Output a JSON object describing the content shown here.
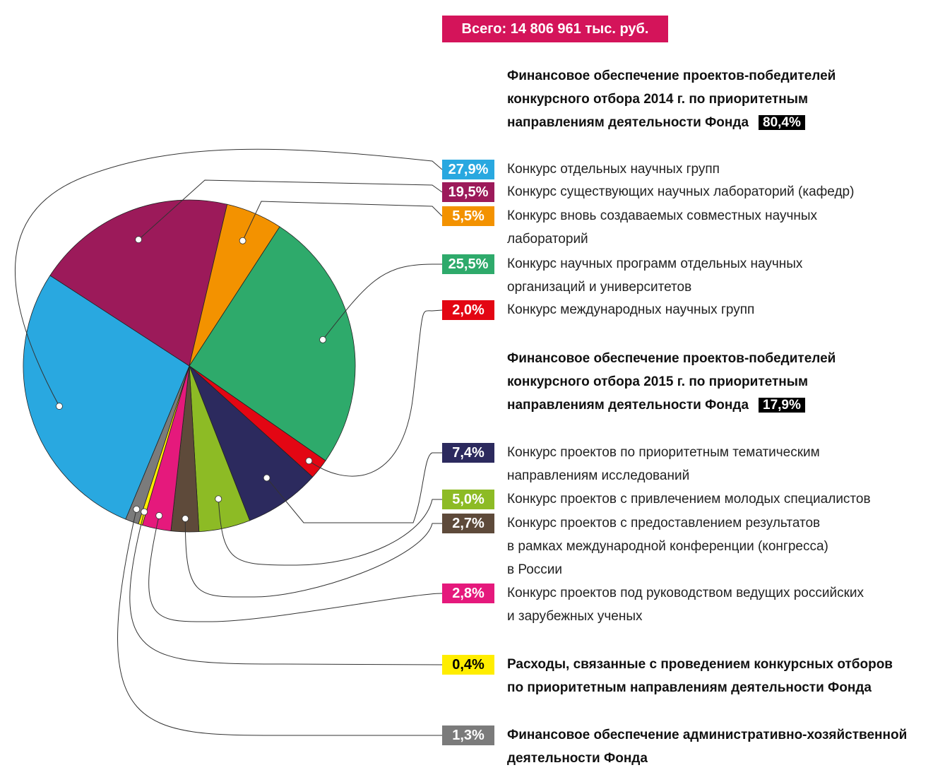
{
  "chart_data": {
    "type": "pie",
    "title": "Всего: 14 806 961 тыс. руб.",
    "title_color": "#d4145a",
    "headings": [
      {
        "text": "Финансовое обеспечение проектов-победителей\nконкурсного отбора 2014 г. по приоритетным\nнаправлениям деятельности Фонда",
        "value": 80.4,
        "value_label": "80,4%"
      },
      {
        "text": "Финансовое обеспечение проектов-победителей\nконкурсного отбора 2015 г. по приоритетным\nнаправлениям деятельности Фонда",
        "value": 17.9,
        "value_label": "17,9%"
      }
    ],
    "categories": [
      "Конкурс отдельных научных групп",
      "Конкурс существующих научных лабораторий (кафедр)",
      "Конкурс вновь создаваемых совместных научных\nлабораторий",
      "Конкурс научных программ отдельных научных\nорганизаций и университетов",
      "Конкурс международных научных групп",
      "Конкурс проектов по приоритетным тематическим\nнаправлениям исследований",
      "Конкурс проектов с привлечением молодых специалистов",
      "Конкурс проектов с предоставлением результатов\nв рамках международной конференции (конгресса)\nв России",
      "Конкурс проектов под руководством ведущих российских\nи зарубежных ученых",
      "Расходы, связанные с проведением конкурсных отборов\nпо приоритетным направлениям деятельности Фонда",
      "Финансовое обеспечение административно-хозяйственной\nдеятельности Фонда"
    ],
    "values": [
      27.9,
      19.5,
      5.5,
      25.5,
      2.0,
      7.4,
      5.0,
      2.7,
      2.8,
      0.4,
      1.3
    ],
    "value_labels": [
      "27,9%",
      "19,5%",
      "5,5%",
      "25,5%",
      "2,0%",
      "7,4%",
      "5,0%",
      "2,7%",
      "2,8%",
      "0,4%",
      "1,3%"
    ],
    "colors": [
      "#29a8e0",
      "#9c1a5a",
      "#f39200",
      "#2eaa6b",
      "#e30613",
      "#2c2a5e",
      "#8dbb25",
      "#5e4a3a",
      "#e5197c",
      "#ffed00",
      "#7b7b7b"
    ]
  }
}
